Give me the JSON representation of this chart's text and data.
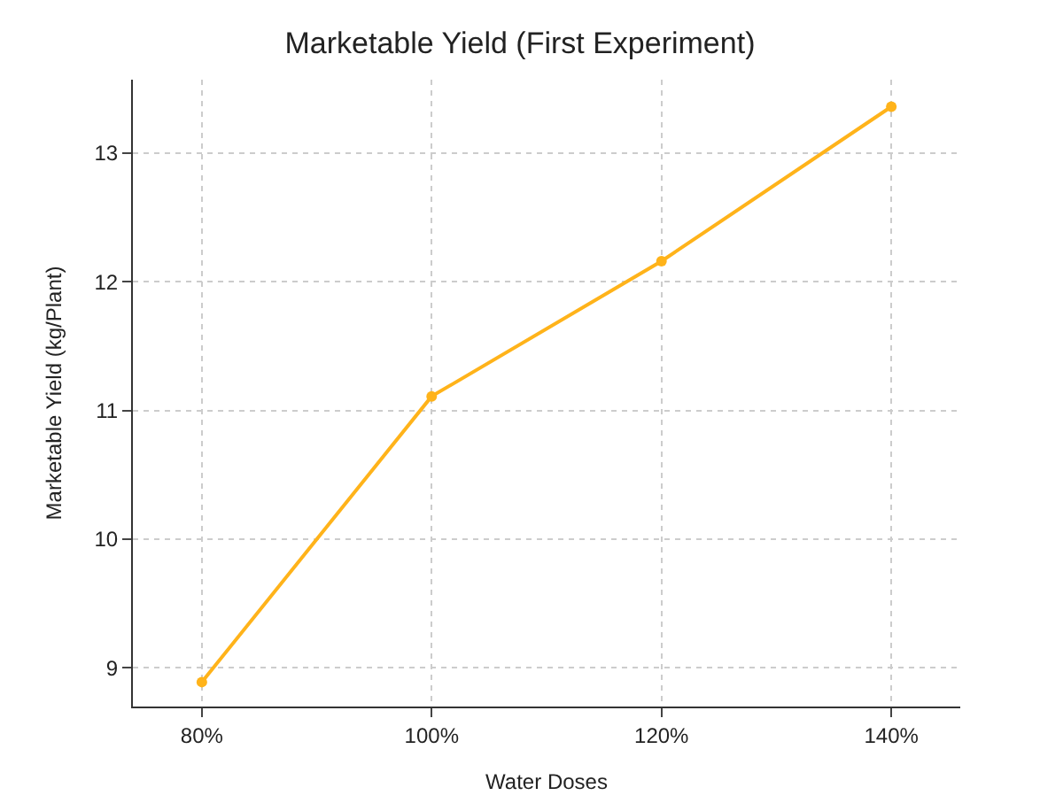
{
  "chart_data": {
    "type": "line",
    "title": "Marketable Yield (First Experiment)",
    "xlabel": "Water Doses",
    "ylabel": "Marketable Yield (kg/Plant)",
    "categories": [
      "80%",
      "100%",
      "120%",
      "140%"
    ],
    "series": [
      {
        "color": "#ffb31a",
        "values": [
          8.89,
          11.11,
          12.16,
          13.36
        ]
      }
    ],
    "ylim": [
      8.7,
      13.57
    ],
    "yticks": [
      9,
      10,
      11,
      12,
      13
    ],
    "grid": true,
    "marker": "circle",
    "line_style": "solid",
    "legend": false
  }
}
